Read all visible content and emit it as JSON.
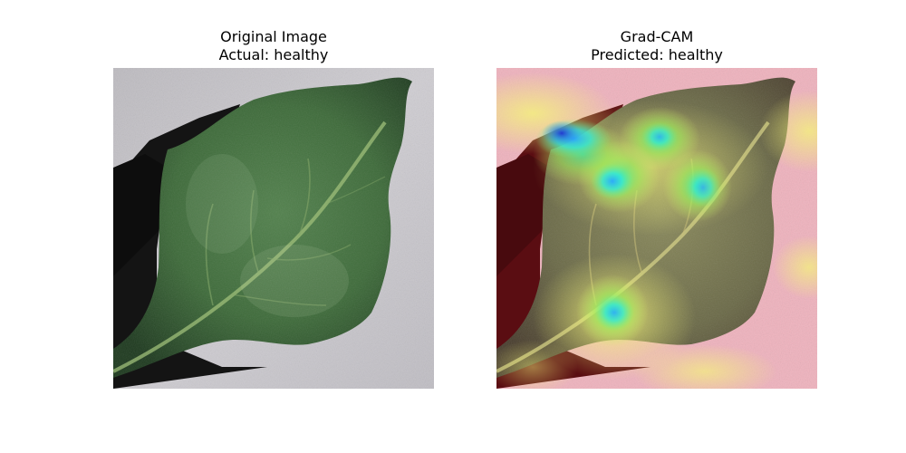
{
  "figure": {
    "left_panel": {
      "title_line1": "Original Image",
      "title_line2": "Actual: healthy"
    },
    "right_panel": {
      "title_line1": "Grad-CAM",
      "title_line2": "Predicted: healthy"
    }
  },
  "colors": {
    "background_gray": "#c9c6ca",
    "leaf_green": "#3f6b3c",
    "leaf_dark": "#1f3a1f",
    "shadow": "#151515",
    "heat_red": "#e84a5f",
    "heat_yellow": "#f2f27a",
    "heat_cyan": "#2ee8e0",
    "heat_blue": "#2a3cd6"
  },
  "images": {
    "left": "leaf-photo",
    "right": "gradcam-heatmap-overlay"
  }
}
